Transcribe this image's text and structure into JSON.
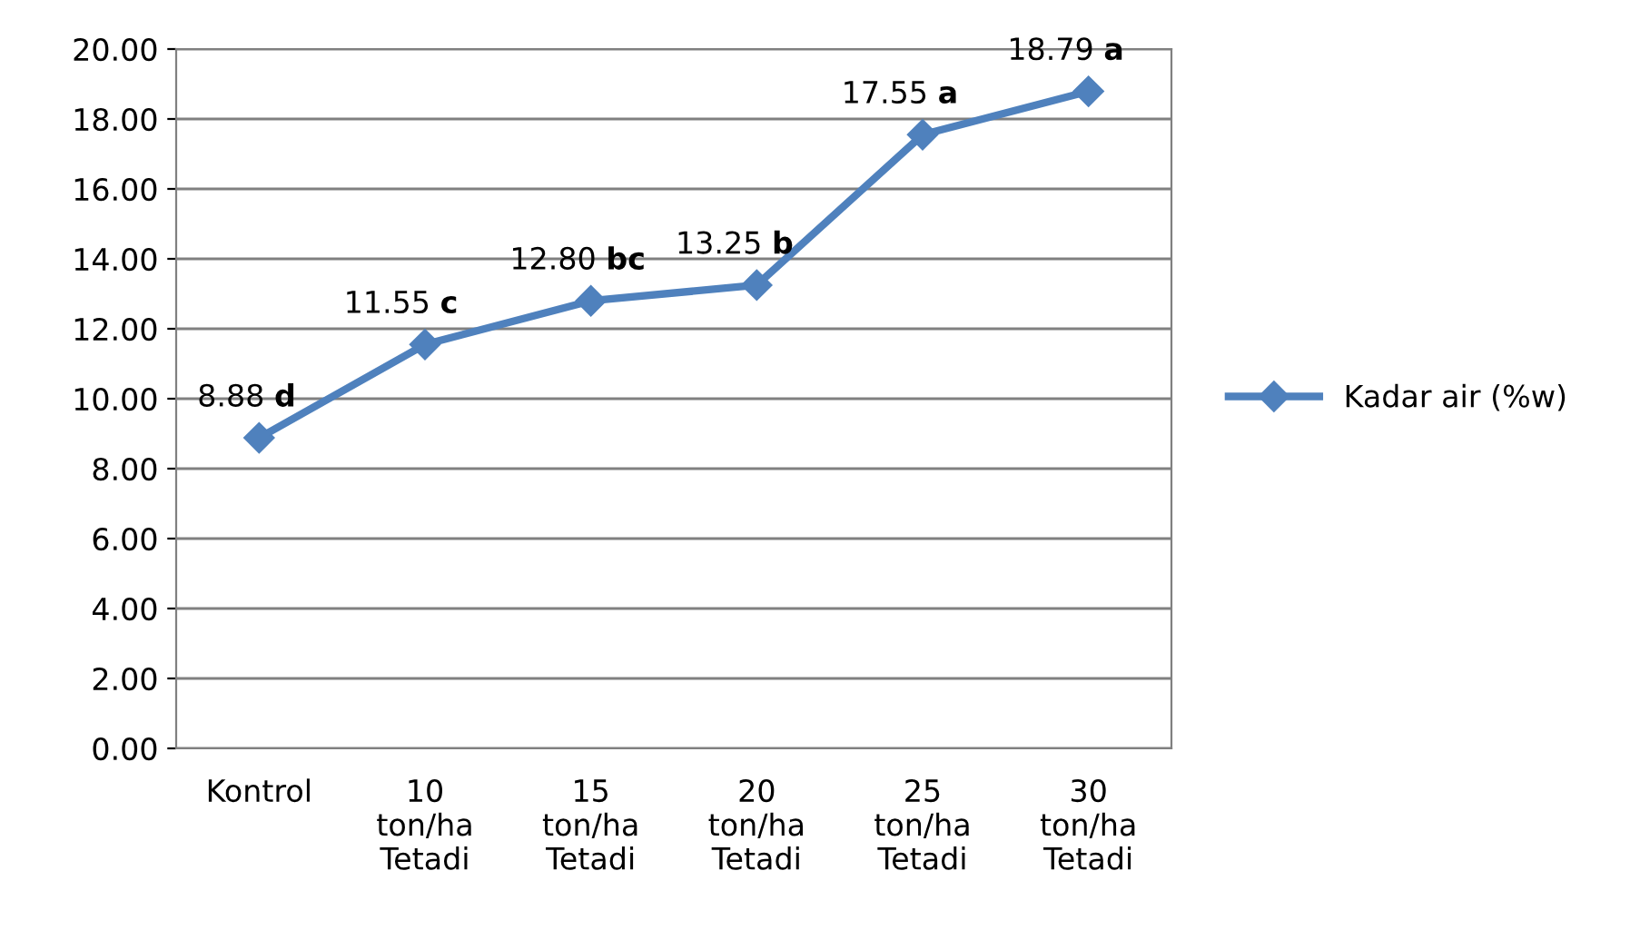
{
  "chart_data": {
    "type": "line",
    "categories": [
      "Kontrol",
      "10\nton/ha\nTetadi",
      "15\nton/ha\nTetadi",
      "20\nton/ha\nTetadi",
      "25\nton/ha\nTetadi",
      "30\nton/ha\nTetadi"
    ],
    "series": [
      {
        "name": "Kadar air (%w)",
        "color": "#4f81bd",
        "values": [
          8.88,
          11.55,
          12.8,
          13.25,
          17.55,
          18.79
        ],
        "value_labels": [
          "8.88 d",
          "11.55 c",
          "12.80 bc",
          "13.25 b",
          "17.55 a",
          "18.79 a"
        ]
      }
    ],
    "ylim": [
      0,
      20
    ],
    "yticks": [
      {
        "value": 0,
        "label": "0.00"
      },
      {
        "value": 2,
        "label": "2.00"
      },
      {
        "value": 4,
        "label": "4.00"
      },
      {
        "value": 6,
        "label": "6.00"
      },
      {
        "value": 8,
        "label": "8.00"
      },
      {
        "value": 10,
        "label": "10.00"
      },
      {
        "value": 12,
        "label": "12.00"
      },
      {
        "value": 14,
        "label": "14.00"
      },
      {
        "value": 16,
        "label": "16.00"
      },
      {
        "value": 18,
        "label": "18.00"
      },
      {
        "value": 20,
        "label": "20.00"
      }
    ],
    "grid": "y",
    "legend": "right",
    "marker": "diamond",
    "line_style": "solid"
  }
}
